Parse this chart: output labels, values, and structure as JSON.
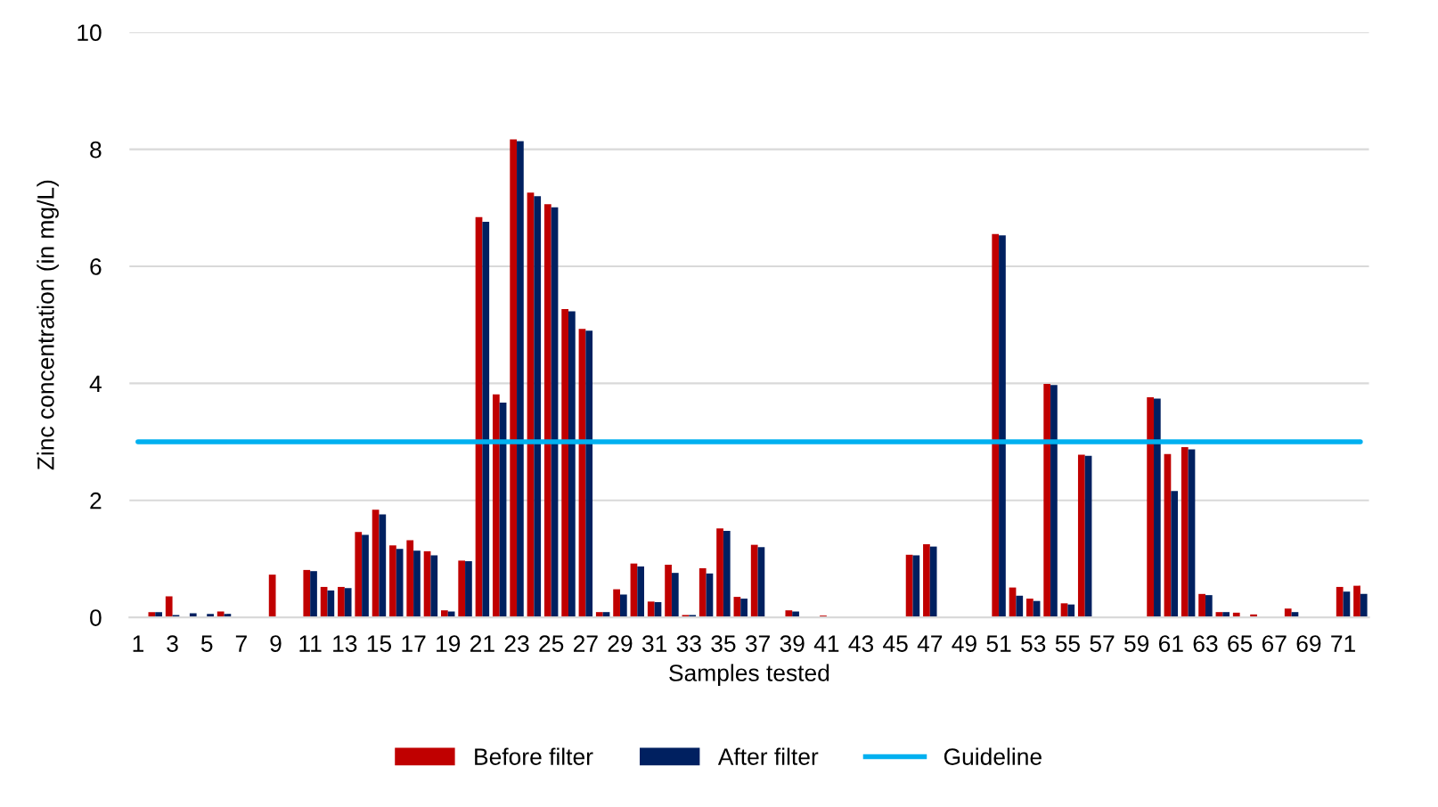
{
  "chart_data": {
    "type": "bar",
    "xlabel": "Samples tested",
    "ylabel": "Zinc concentration (in mg/L)",
    "categories": [
      "1",
      null,
      "3",
      null,
      "5",
      null,
      "7",
      null,
      "9",
      null,
      "11",
      null,
      "13",
      null,
      "15",
      null,
      "17",
      null,
      "19",
      null,
      "21",
      null,
      "23",
      null,
      "25",
      null,
      "27",
      null,
      "29",
      null,
      "31",
      null,
      "33",
      null,
      "35",
      null,
      "37",
      null,
      "39",
      null,
      "41",
      null,
      "43",
      null,
      "45",
      null,
      "47",
      null,
      "49",
      null,
      "51",
      null,
      "53",
      null,
      "55",
      null,
      "57",
      null,
      "59",
      null,
      "61",
      null,
      "63",
      null,
      "65",
      null,
      "67",
      null,
      "69",
      null,
      "71",
      null
    ],
    "series": [
      {
        "name": "Before filter",
        "color": "#c00000",
        "values": [
          0,
          0.09,
          0.36,
          0,
          0,
          0.1,
          null,
          null,
          0.73,
          0,
          0.81,
          0.52,
          0.52,
          1.46,
          1.84,
          1.23,
          1.32,
          1.13,
          0.12,
          0.97,
          6.84,
          3.81,
          8.17,
          7.26,
          7.06,
          5.27,
          4.93,
          0.09,
          0.48,
          0.92,
          0.27,
          0.9,
          0.04,
          0.84,
          1.52,
          0.35,
          1.24,
          0,
          0.12,
          0,
          0.03,
          0,
          0,
          0,
          0,
          1.07,
          1.25,
          0,
          null,
          0,
          6.55,
          0.51,
          0.32,
          3.99,
          0.24,
          2.78,
          0,
          0,
          0,
          3.76,
          2.79,
          2.91,
          0.4,
          0.09,
          0.08,
          0.05,
          0,
          0.15,
          0,
          null,
          0.52,
          0.54
        ]
      },
      {
        "name": "After filter",
        "color": "#002060",
        "values": [
          0,
          0.09,
          0.04,
          0.07,
          0.06,
          0.06,
          0,
          0,
          0,
          0,
          0.79,
          0.46,
          0.5,
          1.41,
          1.76,
          1.17,
          1.14,
          1.06,
          0.1,
          0.96,
          6.76,
          3.67,
          8.14,
          7.2,
          7.01,
          5.23,
          4.9,
          0.09,
          0.39,
          0.87,
          0.26,
          0.76,
          0.04,
          0.75,
          1.48,
          0.32,
          1.2,
          0,
          0.1,
          0,
          0,
          0,
          0,
          0,
          0,
          1.06,
          1.21,
          0,
          0,
          0,
          6.53,
          0.37,
          0.28,
          3.97,
          0.22,
          2.76,
          0,
          0,
          0,
          3.74,
          2.16,
          2.87,
          0.38,
          0.09,
          0,
          0,
          0,
          0.09,
          0,
          null,
          0.44,
          0.4
        ]
      },
      {
        "name": "Guideline",
        "type": "line",
        "color": "#00b0f0",
        "values": [
          3,
          3,
          3,
          3,
          3,
          3,
          3,
          3,
          3,
          3,
          3,
          3,
          3,
          3,
          3,
          3,
          3,
          3,
          3,
          3,
          3,
          3,
          3,
          3,
          3,
          3,
          3,
          3,
          3,
          3,
          3,
          3,
          3,
          3,
          3,
          3,
          3,
          3,
          3,
          3,
          3,
          3,
          3,
          3,
          3,
          3,
          3,
          3,
          3,
          3,
          3,
          3,
          3,
          3,
          3,
          3,
          3,
          3,
          3,
          3,
          3,
          3,
          3,
          3,
          3,
          3,
          3,
          3,
          3,
          3,
          3,
          3
        ]
      }
    ],
    "ylim": [
      0,
      10
    ],
    "yticks": [
      0,
      2,
      4,
      6,
      8,
      10
    ],
    "grid": "y",
    "legend": "bottom",
    "marker": "none",
    "line_style": "solid"
  }
}
